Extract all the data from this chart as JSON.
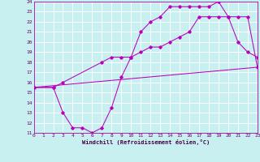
{
  "xlabel": "Windchill (Refroidissement éolien,°C)",
  "background_color": "#c8f0f0",
  "grid_color": "#ffffff",
  "line_color": "#bb00bb",
  "xmin": 0,
  "xmax": 23,
  "ymin": 11,
  "ymax": 24,
  "line1_x": [
    0,
    2,
    3,
    7,
    8,
    9,
    10,
    11,
    12,
    13,
    14,
    15,
    16,
    17,
    18,
    19,
    20,
    21,
    22,
    23
  ],
  "line1_y": [
    15.5,
    15.5,
    16.0,
    18.0,
    18.5,
    18.5,
    18.5,
    19.0,
    19.5,
    19.5,
    20.0,
    20.5,
    21.0,
    22.5,
    22.5,
    22.5,
    22.5,
    22.5,
    22.5,
    17.5
  ],
  "line2_x": [
    0,
    2,
    3,
    4,
    5,
    6,
    7,
    8,
    9,
    10,
    11,
    12,
    13,
    14,
    15,
    16,
    17,
    18,
    19,
    20,
    21,
    22,
    23
  ],
  "line2_y": [
    15.5,
    15.5,
    13.0,
    11.5,
    11.5,
    11.0,
    11.5,
    13.5,
    16.5,
    18.5,
    21.0,
    22.0,
    22.5,
    23.5,
    23.5,
    23.5,
    23.5,
    23.5,
    24.0,
    22.5,
    20.0,
    19.0,
    18.5
  ],
  "line3_x": [
    0,
    23
  ],
  "line3_y": [
    15.5,
    17.5
  ],
  "xticks": [
    0,
    1,
    2,
    3,
    4,
    5,
    6,
    7,
    8,
    9,
    10,
    11,
    12,
    13,
    14,
    15,
    16,
    17,
    18,
    19,
    20,
    21,
    22,
    23
  ],
  "yticks": [
    11,
    12,
    13,
    14,
    15,
    16,
    17,
    18,
    19,
    20,
    21,
    22,
    23,
    24
  ]
}
